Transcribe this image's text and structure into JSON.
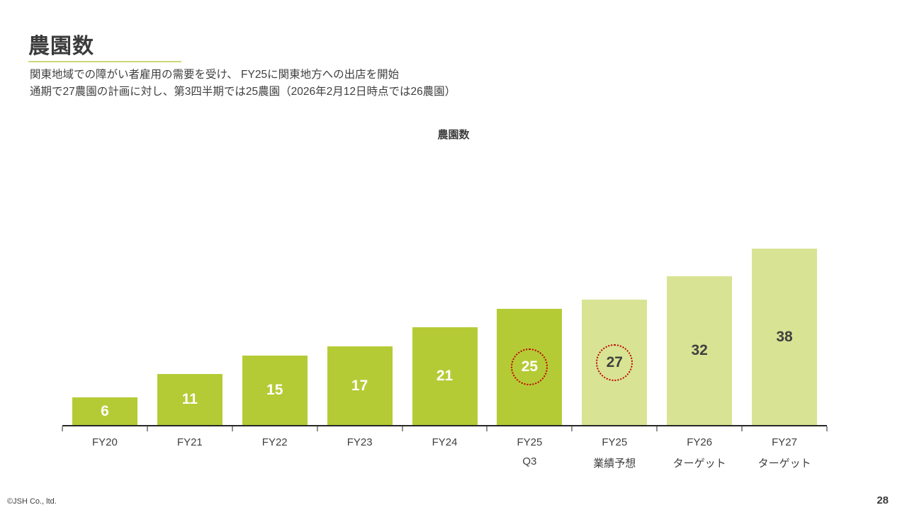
{
  "header": {
    "title": "農園数",
    "subtitle_lines": [
      "関東地域での障がい者雇用の需要を受け、 FY25に関東地方への出店を開始",
      "通期で27農園の計画に対し、第3四半期では25農園（2026年2月12日時点では26農園）"
    ]
  },
  "chart_data": {
    "type": "bar",
    "title": "農園数",
    "xlabel": "",
    "ylabel": "",
    "ylim": [
      0,
      40
    ],
    "grid": false,
    "legend": false,
    "bars": [
      {
        "category": [
          "FY20"
        ],
        "value": 6,
        "variant": "actual",
        "highlight": false
      },
      {
        "category": [
          "FY21"
        ],
        "value": 11,
        "variant": "actual",
        "highlight": false
      },
      {
        "category": [
          "FY22"
        ],
        "value": 15,
        "variant": "actual",
        "highlight": false
      },
      {
        "category": [
          "FY23"
        ],
        "value": 17,
        "variant": "actual",
        "highlight": false
      },
      {
        "category": [
          "FY24"
        ],
        "value": 21,
        "variant": "actual",
        "highlight": false
      },
      {
        "category": [
          "FY25",
          "Q3"
        ],
        "value": 25,
        "variant": "actual",
        "highlight": true
      },
      {
        "category": [
          "FY25",
          "業績予想"
        ],
        "value": 27,
        "variant": "forecast",
        "highlight": true
      },
      {
        "category": [
          "FY26",
          "ターゲット"
        ],
        "value": 32,
        "variant": "forecast",
        "highlight": false
      },
      {
        "category": [
          "FY27",
          "ターゲット"
        ],
        "value": 38,
        "variant": "forecast",
        "highlight": false
      }
    ],
    "colors": {
      "actual": "#b5cb35",
      "forecast": "#d8e493",
      "label_on_actual": "#ffffff",
      "label_on_forecast": "#404040",
      "highlight_ring": "#c00000",
      "axis": "#262626"
    }
  },
  "footer": {
    "copyright": "©JSH Co., ltd.",
    "page_number": "28"
  }
}
